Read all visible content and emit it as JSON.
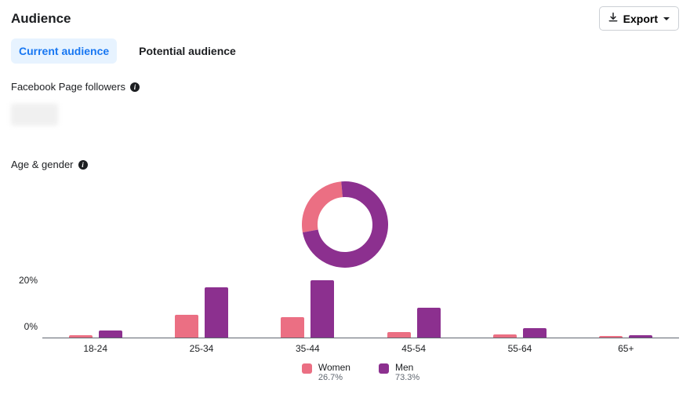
{
  "header": {
    "title": "Audience",
    "export_label": "Export"
  },
  "tabs": {
    "current": "Current audience",
    "potential": "Potential audience"
  },
  "followers": {
    "label": "Facebook Page followers"
  },
  "age_gender": {
    "label": "Age & gender",
    "colors": {
      "women": "#eb6f83",
      "men": "#8c308f",
      "axis": "#606770",
      "donut_track": "#ffffff"
    },
    "donut": {
      "women_pct": 26.7,
      "men_pct": 73.3,
      "size": 110,
      "stroke": 20
    },
    "chart": {
      "type": "bar",
      "y_ticks": [
        "0%",
        "20%"
      ],
      "y_max_pct": 27,
      "categories": [
        "18-24",
        "25-34",
        "35-44",
        "45-54",
        "55-64",
        "65+"
      ],
      "series": [
        {
          "name": "Women",
          "key": "women",
          "values": [
            1.0,
            10.0,
            9.0,
            2.5,
            1.5,
            0.8
          ]
        },
        {
          "name": "Men",
          "key": "men",
          "values": [
            3.0,
            22.0,
            25.0,
            13.0,
            4.0,
            1.0
          ]
        }
      ],
      "legend": [
        {
          "name": "Women",
          "pct": "26.7%",
          "key": "women"
        },
        {
          "name": "Men",
          "pct": "73.3%",
          "key": "men"
        }
      ]
    }
  }
}
